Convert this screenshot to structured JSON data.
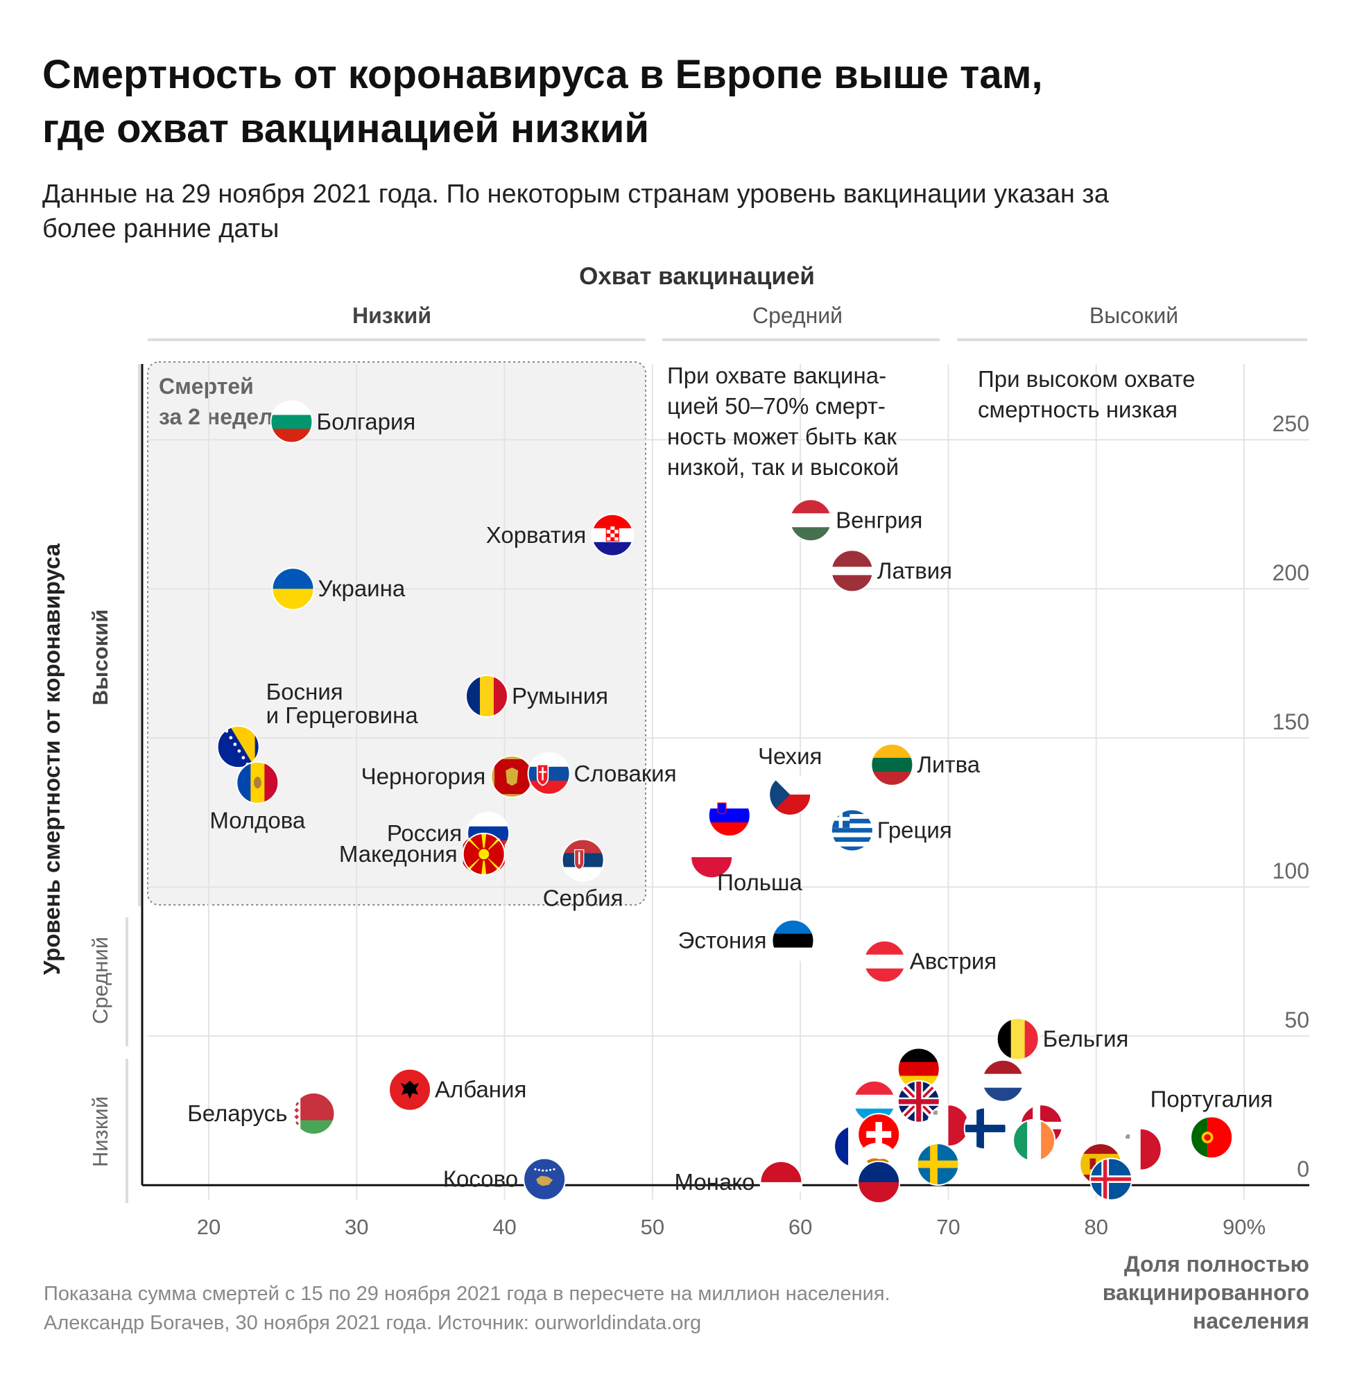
{
  "chart_data": {
    "type": "scatter",
    "title_lines": [
      "Смертность от коронавируса в Европе выше там,",
      "где охват вакцинацией низкий"
    ],
    "subtitle_lines": [
      "Данные на 29 ноября 2021 года. По некоторым странам уровень вакцинации указан за",
      "более ранние даты"
    ],
    "top_header": "Охват вакцинацией",
    "x_bands": [
      "Низкий",
      "Средний",
      "Высокий"
    ],
    "y_bands": [
      "Высокий",
      "Средний",
      "Низкий"
    ],
    "ylabel": "Уровень смертности от коронавируса",
    "xlabel_lines": [
      "Доля полностью",
      "вакцинированного",
      "населения"
    ],
    "box_label_lines": [
      "Смертей",
      "за 2 недели"
    ],
    "notes": {
      "medium": [
        "При охвате вакцина-",
        "цией 50–70% смерт-",
        "ность может быть как",
        "низкой, так и высокой"
      ],
      "high": [
        "При высоком охвате",
        "смертность низкая"
      ]
    },
    "x_ticks": [
      "20",
      "30",
      "40",
      "50",
      "60",
      "70",
      "80",
      "90%"
    ],
    "x_tick_values": [
      20,
      30,
      40,
      50,
      60,
      70,
      80,
      90
    ],
    "y_ticks": [
      "0",
      "50",
      "100",
      "150",
      "200",
      "250"
    ],
    "y_tick_values": [
      0,
      50,
      100,
      150,
      200,
      250
    ],
    "xlim": [
      15.5,
      94.5
    ],
    "ylim": [
      -6,
      294
    ],
    "footer_lines": [
      "Показана сумма смертей с 15 по 29 ноября 2021 года в пересчете на миллион населения.",
      "Александр Богачев, 30 ноября 2021 года. Источник: ourworldindata.org"
    ],
    "points": [
      {
        "name": "Болгария",
        "label": "Болгария",
        "x": 25.6,
        "y": 256,
        "flag": "bg",
        "lpos": "right"
      },
      {
        "name": "Хорватия",
        "label": "Хорватия",
        "x": 47.3,
        "y": 218,
        "flag": "hr",
        "lpos": "left"
      },
      {
        "name": "Украина",
        "label": "Украина",
        "x": 25.7,
        "y": 200,
        "flag": "ua",
        "lpos": "right"
      },
      {
        "name": "Румыния",
        "label": "Румыния",
        "x": 38.8,
        "y": 164,
        "flag": "ro",
        "lpos": "right"
      },
      {
        "name": "Босния и Герцеговина",
        "label": "Босния",
        "label2": "и Герцеговина",
        "x": 22.0,
        "y": 147,
        "flag": "ba",
        "lpos": "above"
      },
      {
        "name": "Молдова",
        "label": "Молдова",
        "x": 23.3,
        "y": 135,
        "flag": "md",
        "lpos": "below"
      },
      {
        "name": "Черногория",
        "label": "Черногория",
        "x": 40.5,
        "y": 137,
        "flag": "me",
        "lpos": "left"
      },
      {
        "name": "Словакия",
        "label": "Словакия",
        "x": 43.0,
        "y": 138,
        "flag": "sk",
        "lpos": "right"
      },
      {
        "name": "Россия",
        "label": "Россия",
        "x": 38.9,
        "y": 118,
        "flag": "ru",
        "lpos": "left"
      },
      {
        "name": "Македония",
        "label": "Македония",
        "x": 38.6,
        "y": 111,
        "flag": "mk",
        "lpos": "left"
      },
      {
        "name": "Сербия",
        "label": "Сербия",
        "x": 45.3,
        "y": 109,
        "flag": "rs",
        "lpos": "below"
      },
      {
        "name": "Венгрия",
        "label": "Венгрия",
        "x": 60.7,
        "y": 223,
        "flag": "hu",
        "lpos": "right"
      },
      {
        "name": "Латвия",
        "label": "Латвия",
        "x": 63.5,
        "y": 206,
        "flag": "lv",
        "lpos": "right"
      },
      {
        "name": "Литва",
        "label": "Литва",
        "x": 66.2,
        "y": 141,
        "flag": "lt",
        "lpos": "right"
      },
      {
        "name": "Чехия",
        "label": "Чехия",
        "x": 59.3,
        "y": 131,
        "flag": "cz",
        "lpos": "above"
      },
      {
        "name": "Греция",
        "label": "Греция",
        "x": 63.5,
        "y": 119,
        "flag": "gr",
        "lpos": "right"
      },
      {
        "name": "Словения",
        "label": "",
        "x": 55.2,
        "y": 124,
        "flag": "si",
        "lpos": "none"
      },
      {
        "name": "Польша",
        "label": "Польша",
        "x": 54.0,
        "y": 110,
        "flag": "pl",
        "lpos": "belowright"
      },
      {
        "name": "Эстония",
        "label": "Эстония",
        "x": 59.5,
        "y": 82,
        "flag": "ee",
        "lpos": "left"
      },
      {
        "name": "Австрия",
        "label": "Австрия",
        "x": 65.7,
        "y": 75,
        "flag": "at",
        "lpos": "right"
      },
      {
        "name": "Бельгия",
        "label": "Бельгия",
        "x": 74.7,
        "y": 49,
        "flag": "be",
        "lpos": "right"
      },
      {
        "name": "Германия",
        "label": "",
        "x": 68.0,
        "y": 39,
        "flag": "de",
        "lpos": "none"
      },
      {
        "name": "Нидерланды",
        "label": "",
        "x": 73.7,
        "y": 35,
        "flag": "nl",
        "lpos": "none"
      },
      {
        "name": "Люксембург",
        "label": "",
        "x": 65.0,
        "y": 28,
        "flag": "lu",
        "lpos": "none"
      },
      {
        "name": "Великобритания",
        "label": "",
        "x": 68.0,
        "y": 28,
        "flag": "gb",
        "lpos": "none"
      },
      {
        "name": "Франция",
        "label": "",
        "x": 63.7,
        "y": 13,
        "flag": "fr",
        "lpos": "none"
      },
      {
        "name": "Мальта",
        "label": "",
        "x": 70.0,
        "y": 20,
        "flag": "mt",
        "lpos": "none"
      },
      {
        "name": "Дания",
        "label": "",
        "x": 76.3,
        "y": 20,
        "flag": "dk",
        "lpos": "none"
      },
      {
        "name": "Финляндия",
        "label": "",
        "x": 72.5,
        "y": 19,
        "flag": "fi",
        "lpos": "none"
      },
      {
        "name": "Ирландия",
        "label": "",
        "x": 75.8,
        "y": 15,
        "flag": "ie",
        "lpos": "none"
      },
      {
        "name": "Швейцария",
        "label": "",
        "x": 65.3,
        "y": 17,
        "flag": "ch",
        "lpos": "none"
      },
      {
        "name": "Кипр",
        "label": "",
        "x": 65.2,
        "y": 7,
        "flag": "cy",
        "lpos": "none"
      },
      {
        "name": "Лихтенштейн",
        "label": "",
        "x": 65.3,
        "y": 1,
        "flag": "li",
        "lpos": "none"
      },
      {
        "name": "Швеция",
        "label": "",
        "x": 69.3,
        "y": 7,
        "flag": "se",
        "lpos": "none"
      },
      {
        "name": "Бельгия-красная",
        "label": "",
        "x": 83.0,
        "y": 12,
        "flag": "mt",
        "lpos": "none"
      },
      {
        "name": "Португалия",
        "label": "Португалия",
        "x": 87.8,
        "y": 16,
        "flag": "pt",
        "lpos": "above"
      },
      {
        "name": "Испания",
        "label": "",
        "x": 80.3,
        "y": 7,
        "flag": "es",
        "lpos": "none"
      },
      {
        "name": "Исландия",
        "label": "",
        "x": 81.0,
        "y": 2,
        "flag": "is",
        "lpos": "none"
      },
      {
        "name": "Монако",
        "label": "Монако",
        "x": 58.7,
        "y": 1,
        "flag": "mc",
        "lpos": "left"
      },
      {
        "name": "Косово",
        "label": "Косово",
        "x": 42.7,
        "y": 2,
        "flag": "xk",
        "lpos": "left"
      },
      {
        "name": "Албания",
        "label": "Албания",
        "x": 33.6,
        "y": 32,
        "flag": "al",
        "lpos": "right"
      },
      {
        "name": "Беларусь",
        "label": "Беларусь",
        "x": 27.1,
        "y": 24,
        "flag": "by",
        "lpos": "left"
      }
    ]
  }
}
